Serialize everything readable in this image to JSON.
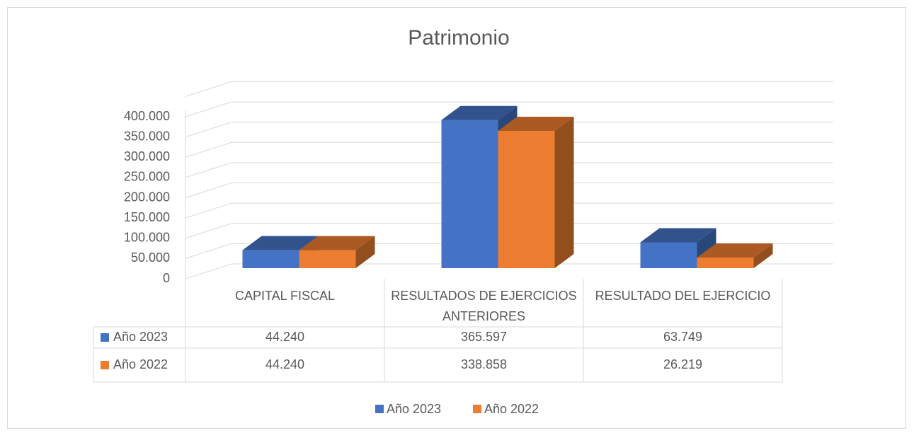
{
  "chart_data": {
    "type": "bar3d",
    "title": "Patrimonio",
    "categories": [
      "CAPITAL FISCAL",
      "RESULTADOS DE EJERCICIOS ANTERIORES",
      "RESULTADO DEL EJERCICIO"
    ],
    "series": [
      {
        "name": "Año 2023",
        "color": "#4472c4",
        "values": [
          44240,
          365597,
          63749
        ],
        "value_labels": [
          "44.240",
          "365.597",
          "63.749"
        ]
      },
      {
        "name": "Año 2022",
        "color": "#ed7d31",
        "values": [
          44240,
          338858,
          26219
        ],
        "value_labels": [
          "44.240",
          "338.858",
          "26.219"
        ]
      }
    ],
    "ylim": [
      0,
      450000
    ],
    "yticks": [
      0,
      {
        "value": 50000,
        "label": "50.000"
      },
      {
        "value": 100000,
        "label": "100.000"
      },
      {
        "value": 150000,
        "label": "150.000"
      },
      {
        "value": 200000,
        "label": "200.000"
      },
      {
        "value": 250000,
        "label": "250.000"
      },
      {
        "value": 300000,
        "label": "300.000"
      },
      {
        "value": 350000,
        "label": "350.000"
      },
      {
        "value": 400000,
        "label": "400.000"
      }
    ],
    "grid": true,
    "legend": "bottom",
    "data_table": true
  }
}
